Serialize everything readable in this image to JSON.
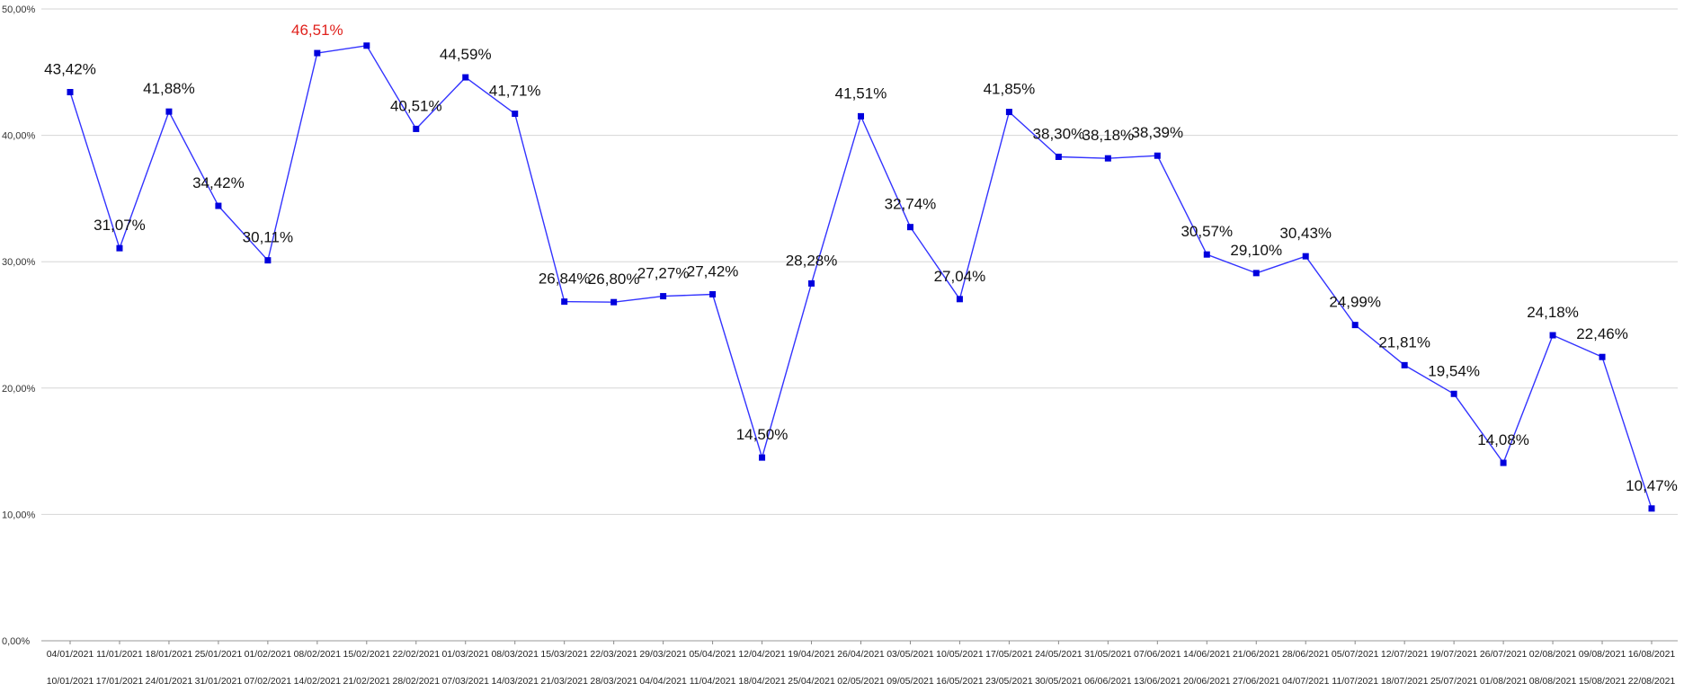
{
  "chart_data": {
    "type": "line",
    "title": "",
    "xlabel": "",
    "ylabel": "",
    "ylim": [
      0,
      50
    ],
    "y_ticks": [
      "0,00%",
      "10,00%",
      "20,00%",
      "30,00%",
      "40,00%",
      "50,00%"
    ],
    "grid": true,
    "legend": "none",
    "categories": [
      {
        "start": "04/01/2021",
        "end": "10/01/2021"
      },
      {
        "start": "11/01/2021",
        "end": "17/01/2021"
      },
      {
        "start": "18/01/2021",
        "end": "24/01/2021"
      },
      {
        "start": "25/01/2021",
        "end": "31/01/2021"
      },
      {
        "start": "01/02/2021",
        "end": "07/02/2021"
      },
      {
        "start": "08/02/2021",
        "end": "14/02/2021"
      },
      {
        "start": "15/02/2021",
        "end": "21/02/2021"
      },
      {
        "start": "22/02/2021",
        "end": "28/02/2021"
      },
      {
        "start": "01/03/2021",
        "end": "07/03/2021"
      },
      {
        "start": "08/03/2021",
        "end": "14/03/2021"
      },
      {
        "start": "15/03/2021",
        "end": "21/03/2021"
      },
      {
        "start": "22/03/2021",
        "end": "28/03/2021"
      },
      {
        "start": "29/03/2021",
        "end": "04/04/2021"
      },
      {
        "start": "05/04/2021",
        "end": "11/04/2021"
      },
      {
        "start": "12/04/2021",
        "end": "18/04/2021"
      },
      {
        "start": "19/04/2021",
        "end": "25/04/2021"
      },
      {
        "start": "26/04/2021",
        "end": "02/05/2021"
      },
      {
        "start": "03/05/2021",
        "end": "09/05/2021"
      },
      {
        "start": "10/05/2021",
        "end": "16/05/2021"
      },
      {
        "start": "17/05/2021",
        "end": "23/05/2021"
      },
      {
        "start": "24/05/2021",
        "end": "30/05/2021"
      },
      {
        "start": "31/05/2021",
        "end": "06/06/2021"
      },
      {
        "start": "07/06/2021",
        "end": "13/06/2021"
      },
      {
        "start": "14/06/2021",
        "end": "20/06/2021"
      },
      {
        "start": "21/06/2021",
        "end": "27/06/2021"
      },
      {
        "start": "28/06/2021",
        "end": "04/07/2021"
      },
      {
        "start": "05/07/2021",
        "end": "11/07/2021"
      },
      {
        "start": "12/07/2021",
        "end": "18/07/2021"
      },
      {
        "start": "19/07/2021",
        "end": "25/07/2021"
      },
      {
        "start": "26/07/2021",
        "end": "01/08/2021"
      },
      {
        "start": "02/08/2021",
        "end": "08/08/2021"
      },
      {
        "start": "09/08/2021",
        "end": "15/08/2021"
      },
      {
        "start": "16/08/2021",
        "end": "22/08/2021"
      }
    ],
    "series": [
      {
        "values": [
          43.42,
          31.07,
          41.88,
          34.42,
          30.11,
          46.51,
          47.1,
          40.51,
          44.59,
          41.71,
          26.84,
          26.8,
          27.27,
          27.42,
          14.5,
          28.28,
          41.51,
          32.74,
          27.04,
          41.85,
          38.3,
          38.18,
          38.39,
          30.57,
          29.1,
          30.43,
          24.99,
          21.81,
          19.54,
          14.08,
          24.18,
          22.46,
          10.47
        ],
        "data_labels": [
          "43,42%",
          "31,07%",
          "41,88%",
          "34,42%",
          "30,11%",
          "46,51%",
          "",
          "40,51%",
          "44,59%",
          "41,71%",
          "26,84%",
          "26,80%",
          "27,27%",
          "27,42%",
          "14,50%",
          "28,28%",
          "41,51%",
          "32,74%",
          "27,04%",
          "41,85%",
          "38,30%",
          "38,18%",
          "38,39%",
          "30,57%",
          "29,10%",
          "30,43%",
          "24,99%",
          "21,81%",
          "19,54%",
          "14,08%",
          "24,18%",
          "22,46%",
          "10,47%"
        ],
        "highlighted_label_index": 5
      }
    ],
    "colors": {
      "line": "#3333ff",
      "marker": "#0000dd",
      "grid": "#d6d6d6",
      "highlight_label": "#e0211c"
    }
  }
}
